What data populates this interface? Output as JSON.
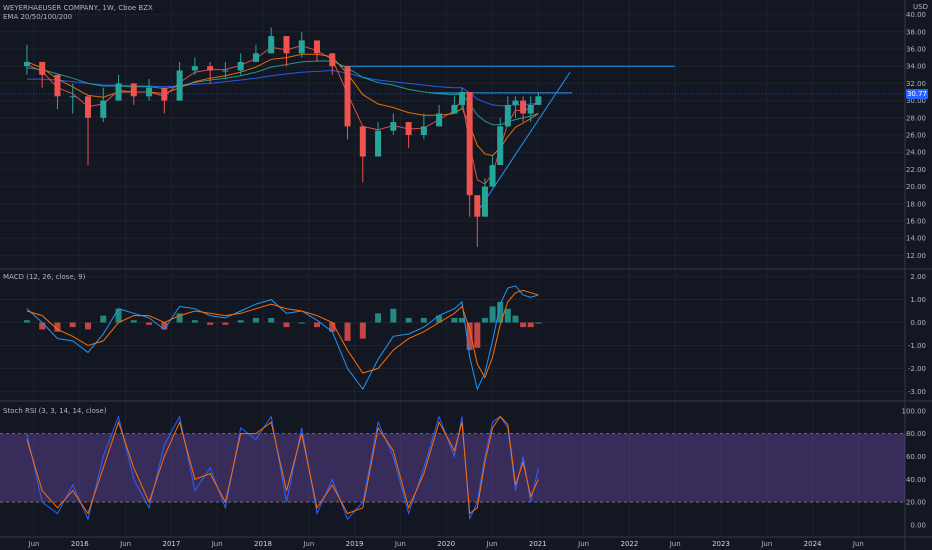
{
  "header": {
    "symbol_line": "WEYERHAEUSER COMPANY, 1W, Cboe BZX",
    "indicator_line": "EMA 20/50/100/200",
    "currency": "USD"
  },
  "price_panel": {
    "last_price_label": "30.77",
    "y_ticks": [
      "40.00",
      "38.00",
      "36.00",
      "34.00",
      "32.00",
      "30.00",
      "28.00",
      "26.00",
      "24.00",
      "22.00",
      "20.00",
      "18.00",
      "16.00",
      "14.00",
      "12.00"
    ]
  },
  "macd_panel": {
    "label": "MACD (12, 26, close, 9)",
    "y_ticks": [
      "2.00",
      "1.00",
      "0.00",
      "-1.00",
      "-2.00",
      "-3.00"
    ]
  },
  "rsi_panel": {
    "label": "Stoch RSI (3, 3, 14, 14, close)",
    "y_ticks": [
      "100.00",
      "80.00",
      "60.00",
      "40.00",
      "20.00",
      "0.00"
    ]
  },
  "x_axis": {
    "ticks": [
      "Jun",
      "2016",
      "Jun",
      "2017",
      "Jun",
      "2018",
      "Jun",
      "2019",
      "Jun",
      "2020",
      "Jun",
      "2021",
      "Jun",
      "2022",
      "Jun",
      "2023",
      "Jun",
      "2024",
      "Jun"
    ]
  },
  "colors": {
    "background": "#131722",
    "up_candle": "#26a69a",
    "down_candle": "#ef5350",
    "ema20": "#ef5350",
    "ema50": "#f57c00",
    "ema100": "#26a69a",
    "ema200": "#2962ff",
    "trendline": "#2196f3",
    "macd_line": "#2196f3",
    "signal_line": "#ff6d00",
    "stoch_k": "#2962ff",
    "stoch_d": "#ff6d00",
    "stoch_band": "#7e57c2"
  },
  "chart_data": [
    {
      "type": "candlestick",
      "title": "WEYERHAEUSER COMPANY, 1W, Cboe BZX",
      "x": [
        "2015-05",
        "2015-07",
        "2015-09",
        "2015-11",
        "2016-01",
        "2016-03",
        "2016-05",
        "2016-07",
        "2016-09",
        "2016-11",
        "2017-01",
        "2017-03",
        "2017-05",
        "2017-07",
        "2017-09",
        "2017-11",
        "2018-01",
        "2018-03",
        "2018-05",
        "2018-07",
        "2018-09",
        "2018-11",
        "2019-01",
        "2019-03",
        "2019-05",
        "2019-07",
        "2019-09",
        "2019-11",
        "2020-01",
        "2020-02",
        "2020-03",
        "2020-04",
        "2020-05",
        "2020-06",
        "2020-07",
        "2020-08",
        "2020-09",
        "2020-10",
        "2020-11",
        "2020-12"
      ],
      "close": [
        34.5,
        33.0,
        30.5,
        30.5,
        28.0,
        30.0,
        32.0,
        30.5,
        31.5,
        30.0,
        33.5,
        34.0,
        33.5,
        33.5,
        34.5,
        35.5,
        37.5,
        35.5,
        37.0,
        35.5,
        34.0,
        27.0,
        23.5,
        26.5,
        27.5,
        26.0,
        27.0,
        28.5,
        29.5,
        31.0,
        19.0,
        16.5,
        20.0,
        22.5,
        27.0,
        29.5,
        30.0,
        28.5,
        29.5,
        30.5
      ],
      "high": [
        36.5,
        34.5,
        32.5,
        32.0,
        30.0,
        31.5,
        33.0,
        32.0,
        32.5,
        31.5,
        34.5,
        35.0,
        34.5,
        34.5,
        35.5,
        36.5,
        38.5,
        37.0,
        38.0,
        36.5,
        35.5,
        30.0,
        26.5,
        27.5,
        28.5,
        27.5,
        28.5,
        29.5,
        30.5,
        31.5,
        30.0,
        18.0,
        21.0,
        23.5,
        28.0,
        30.5,
        30.5,
        30.5,
        30.5,
        31.0
      ],
      "low": [
        33.0,
        31.5,
        29.0,
        28.5,
        22.5,
        27.5,
        30.5,
        29.5,
        30.0,
        28.5,
        32.5,
        33.0,
        32.0,
        32.5,
        33.0,
        34.5,
        35.5,
        34.0,
        35.0,
        34.5,
        33.0,
        25.5,
        20.5,
        24.5,
        26.0,
        24.5,
        25.5,
        27.5,
        28.5,
        29.0,
        16.5,
        13.0,
        17.0,
        20.5,
        23.5,
        27.0,
        28.0,
        27.5,
        27.5,
        29.5
      ],
      "ylim": [
        11,
        41
      ],
      "last_price": 30.77,
      "ema20": [
        34.2,
        33.4,
        31.5,
        30.8,
        29.3,
        29.6,
        31.2,
        31.0,
        31.0,
        30.5,
        32.1,
        33.3,
        33.6,
        33.6,
        34.1,
        34.9,
        36.2,
        35.9,
        36.4,
        35.8,
        34.8,
        30.8,
        27.0,
        26.6,
        27.1,
        26.7,
        26.8,
        27.8,
        28.8,
        30.2,
        24.8,
        20.8,
        20.3,
        21.5,
        24.5,
        27.3,
        28.9,
        28.8,
        29.2,
        29.9
      ],
      "ema50": [
        34.5,
        33.8,
        32.5,
        31.6,
        30.6,
        30.4,
        31.0,
        31.0,
        31.0,
        30.8,
        31.5,
        32.2,
        32.6,
        32.9,
        33.3,
        33.9,
        34.8,
        35.0,
        35.4,
        35.4,
        35.1,
        33.1,
        30.7,
        29.6,
        29.2,
        28.6,
        28.3,
        28.3,
        28.5,
        29.1,
        27.1,
        24.8,
        23.8,
        23.6,
        24.5,
        25.8,
        26.9,
        27.4,
        27.9,
        28.5
      ],
      "ema100": [
        33.8,
        33.6,
        33.1,
        32.6,
        32.0,
        31.7,
        31.7,
        31.6,
        31.6,
        31.4,
        31.7,
        32.1,
        32.4,
        32.6,
        32.9,
        33.3,
        33.9,
        34.2,
        34.5,
        34.6,
        34.6,
        33.8,
        32.7,
        32.1,
        31.8,
        31.3,
        31.0,
        30.8,
        30.7,
        30.8,
        29.6,
        28.3,
        27.6,
        27.2,
        27.2,
        27.5,
        27.8,
        28.0,
        28.2,
        28.5
      ],
      "ema200": [
        32.5,
        32.5,
        32.4,
        32.2,
        32.0,
        31.8,
        31.8,
        31.7,
        31.7,
        31.6,
        31.7,
        31.9,
        32.0,
        32.2,
        32.4,
        32.6,
        32.9,
        33.1,
        33.3,
        33.4,
        33.5,
        33.2,
        32.7,
        32.4,
        32.2,
        32.0,
        31.8,
        31.6,
        31.5,
        31.5,
        30.9,
        30.2,
        29.8,
        29.5,
        29.4,
        29.4,
        29.5,
        29.5,
        29.6,
        29.7
      ]
    },
    {
      "type": "line",
      "title": "MACD (12, 26, close, 9)",
      "x": [
        "2015-05",
        "2015-07",
        "2015-09",
        "2015-11",
        "2016-01",
        "2016-03",
        "2016-05",
        "2016-07",
        "2016-09",
        "2016-11",
        "2017-01",
        "2017-03",
        "2017-05",
        "2017-07",
        "2017-09",
        "2017-11",
        "2018-01",
        "2018-03",
        "2018-05",
        "2018-07",
        "2018-09",
        "2018-11",
        "2019-01",
        "2019-03",
        "2019-05",
        "2019-07",
        "2019-09",
        "2019-11",
        "2020-01",
        "2020-02",
        "2020-03",
        "2020-04",
        "2020-05",
        "2020-06",
        "2020-07",
        "2020-08",
        "2020-09",
        "2020-10",
        "2020-11",
        "2020-12"
      ],
      "series": [
        {
          "name": "MACD",
          "values": [
            0.6,
            0.0,
            -0.7,
            -0.8,
            -1.3,
            -0.5,
            0.6,
            0.4,
            0.2,
            -0.3,
            0.7,
            0.6,
            0.3,
            0.2,
            0.5,
            0.8,
            1.0,
            0.4,
            0.5,
            0.1,
            -0.4,
            -2.0,
            -2.9,
            -1.6,
            -0.6,
            -0.5,
            -0.2,
            0.3,
            0.6,
            0.9,
            -1.5,
            -2.9,
            -2.2,
            -0.8,
            0.8,
            1.5,
            1.6,
            1.2,
            1.1,
            1.2
          ]
        },
        {
          "name": "Signal",
          "values": [
            0.5,
            0.3,
            -0.3,
            -0.6,
            -1.0,
            -0.8,
            0.0,
            0.3,
            0.3,
            0.0,
            0.3,
            0.5,
            0.4,
            0.3,
            0.4,
            0.6,
            0.8,
            0.6,
            0.5,
            0.3,
            0.0,
            -1.2,
            -2.2,
            -2.0,
            -1.2,
            -0.7,
            -0.4,
            0.0,
            0.4,
            0.7,
            -0.3,
            -1.8,
            -2.4,
            -1.5,
            -0.1,
            0.9,
            1.3,
            1.4,
            1.3,
            1.2
          ]
        }
      ],
      "ylim": [
        -3.2,
        2.2
      ]
    },
    {
      "type": "line",
      "title": "Stoch RSI (3, 3, 14, 14, close)",
      "x": [
        "2015-05",
        "2015-07",
        "2015-09",
        "2015-11",
        "2016-01",
        "2016-03",
        "2016-05",
        "2016-07",
        "2016-09",
        "2016-11",
        "2017-01",
        "2017-03",
        "2017-05",
        "2017-07",
        "2017-09",
        "2017-11",
        "2018-01",
        "2018-03",
        "2018-05",
        "2018-07",
        "2018-09",
        "2018-11",
        "2019-01",
        "2019-03",
        "2019-05",
        "2019-07",
        "2019-09",
        "2019-11",
        "2020-01",
        "2020-02",
        "2020-03",
        "2020-04",
        "2020-05",
        "2020-06",
        "2020-07",
        "2020-08",
        "2020-09",
        "2020-10",
        "2020-11",
        "2020-12"
      ],
      "series": [
        {
          "name": "K",
          "values": [
            80,
            20,
            10,
            35,
            5,
            60,
            95,
            40,
            15,
            70,
            95,
            30,
            50,
            15,
            85,
            75,
            95,
            20,
            85,
            10,
            40,
            5,
            20,
            90,
            60,
            10,
            50,
            95,
            60,
            95,
            5,
            20,
            60,
            90,
            95,
            85,
            30,
            60,
            20,
            50
          ]
        },
        {
          "name": "D",
          "values": [
            75,
            30,
            15,
            30,
            10,
            50,
            90,
            50,
            20,
            60,
            90,
            40,
            45,
            20,
            80,
            80,
            90,
            30,
            80,
            15,
            35,
            10,
            15,
            85,
            65,
            15,
            45,
            90,
            65,
            90,
            10,
            15,
            55,
            85,
            95,
            88,
            35,
            55,
            25,
            40
          ]
        }
      ],
      "ylim": [
        -8,
        106
      ],
      "band": [
        20,
        80
      ]
    }
  ]
}
